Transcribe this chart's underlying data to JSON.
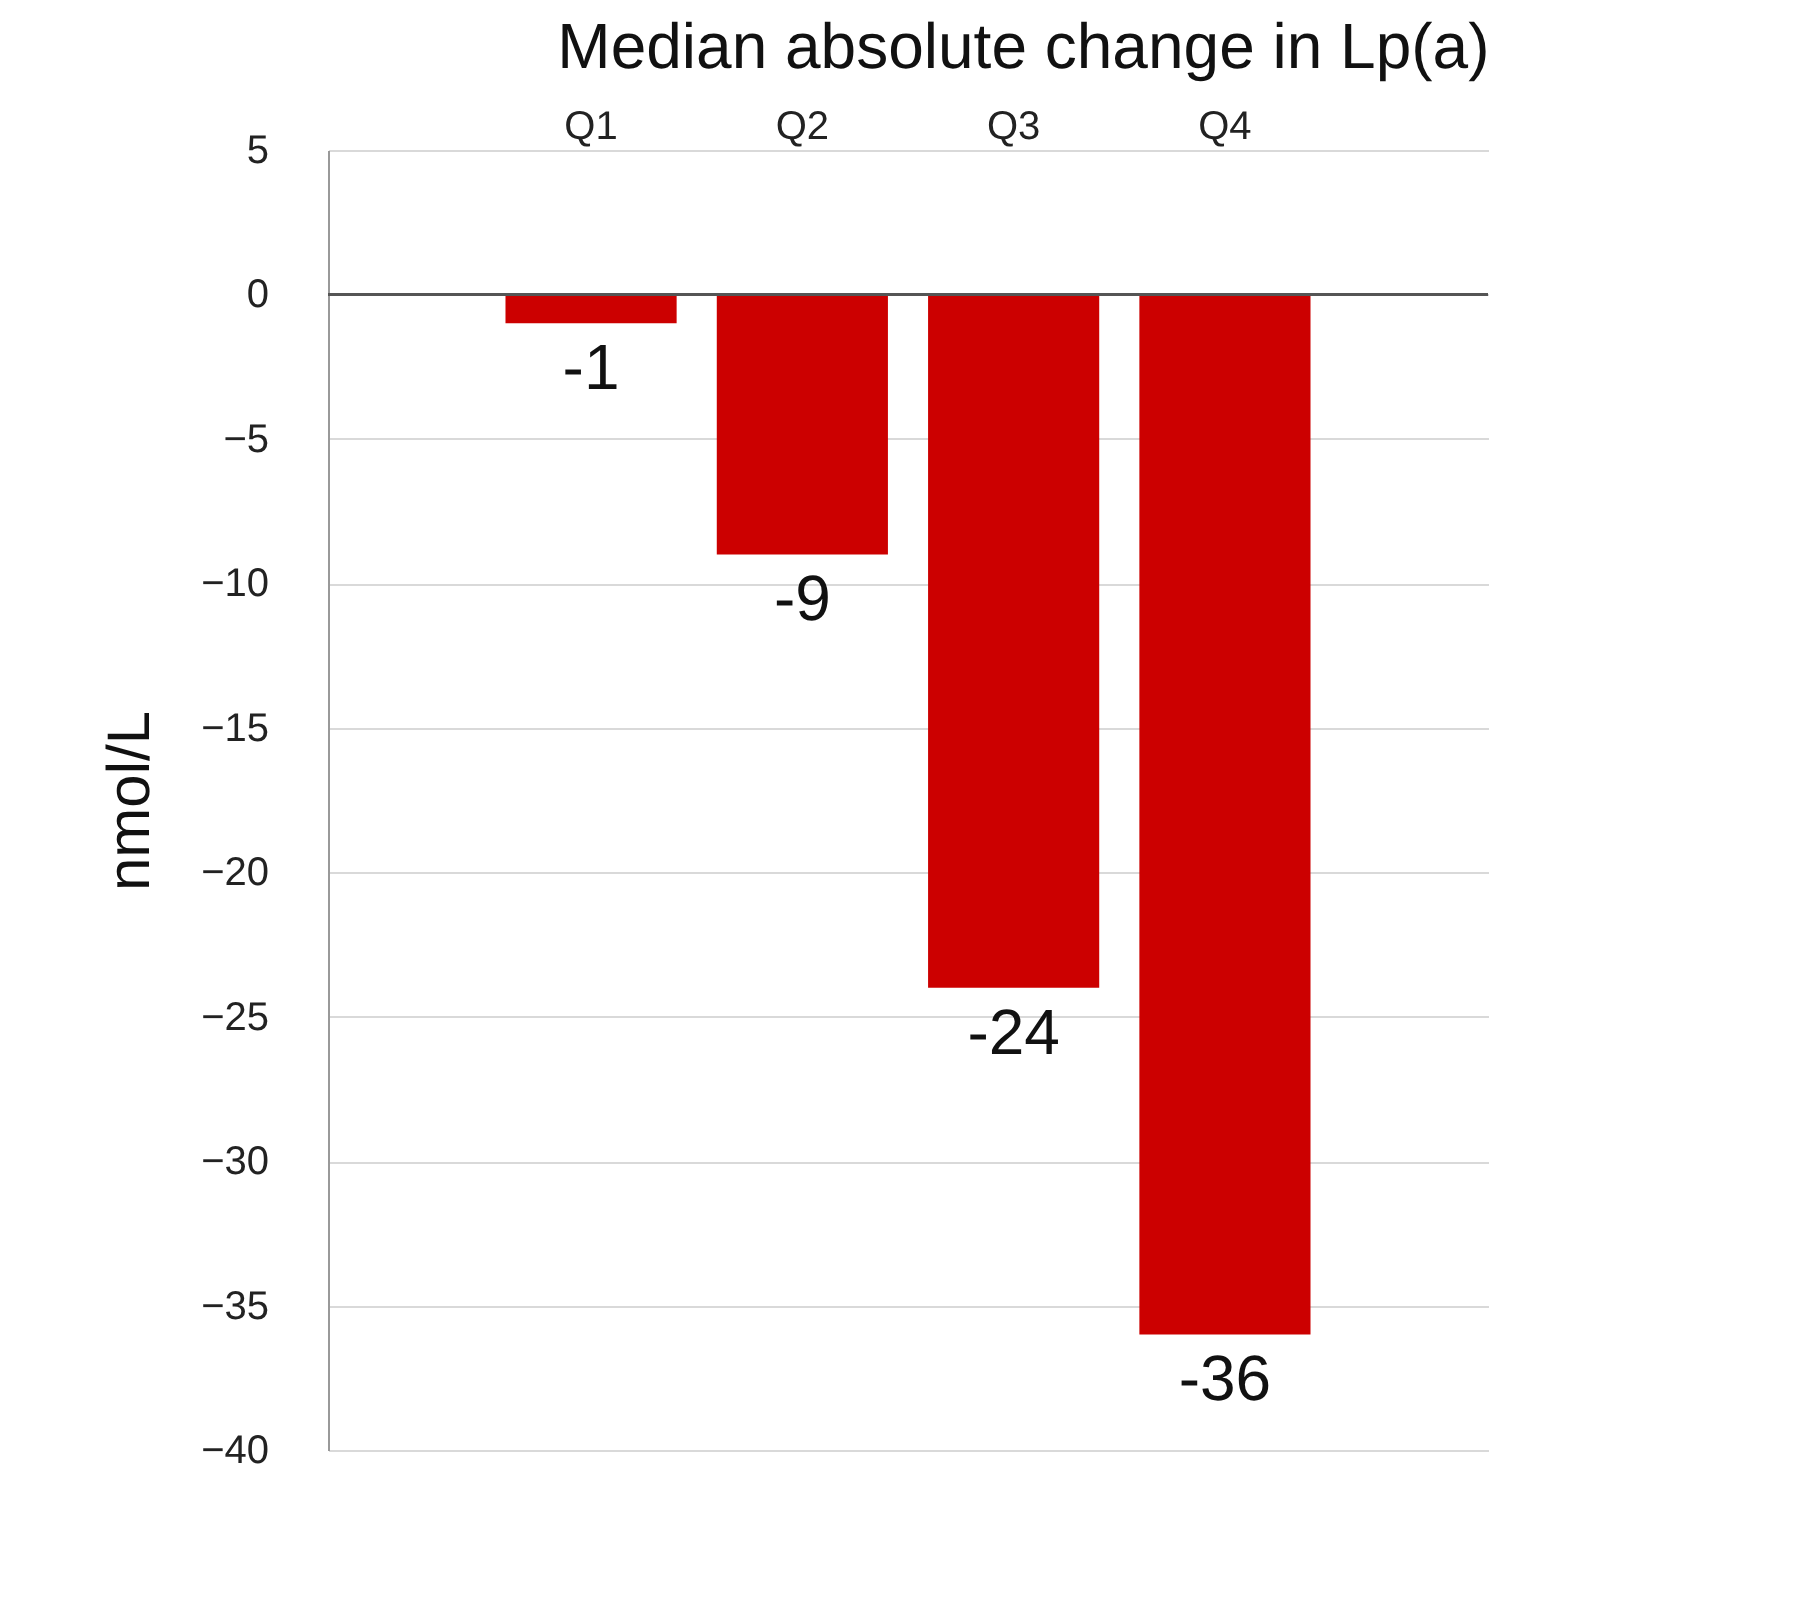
{
  "chart_data": {
    "type": "bar",
    "title": "Median absolute change in Lp(a)",
    "ylabel": "nmol/L",
    "categories": [
      "Q1",
      "Q2",
      "Q3",
      "Q4"
    ],
    "values": [
      -1,
      -9,
      -24,
      -36
    ],
    "color": "#cc0000",
    "ylim": [
      -40,
      5
    ],
    "yticks": [
      5,
      0,
      -5,
      -10,
      -15,
      -20,
      -25,
      -30,
      -35,
      -40
    ],
    "grid": "y",
    "data_labels": true
  }
}
